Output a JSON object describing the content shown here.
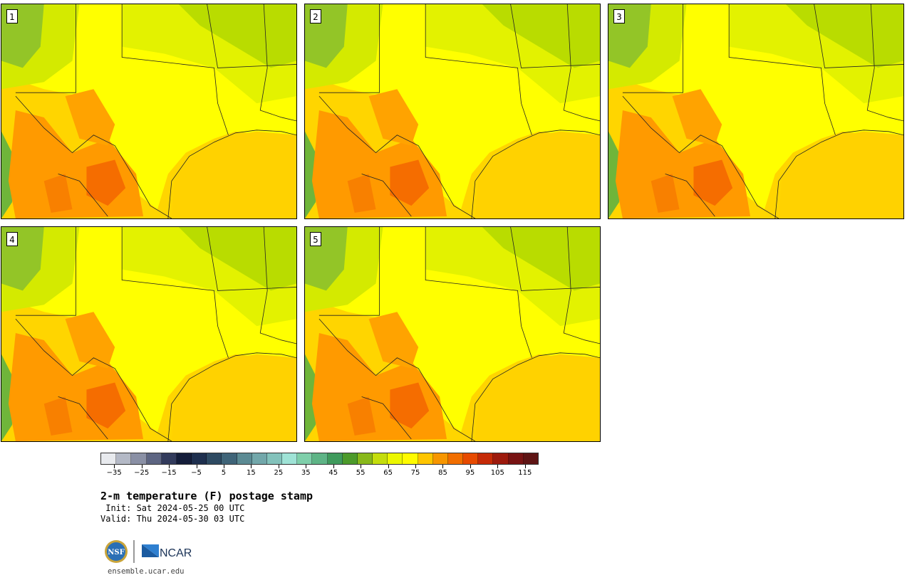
{
  "panels": [
    {
      "label": "1"
    },
    {
      "label": "2"
    },
    {
      "label": "3"
    },
    {
      "label": "4"
    },
    {
      "label": "5"
    }
  ],
  "colorbar": {
    "colors": [
      "#e8eaee",
      "#b4b9c6",
      "#8a90a5",
      "#5d6582",
      "#323b5c",
      "#141d3a",
      "#1e2f4e",
      "#2e4a62",
      "#3f6478",
      "#5b8a93",
      "#72a7aa",
      "#83c2bb",
      "#9fe3d6",
      "#7fcfaa",
      "#5eb486",
      "#3f9a5c",
      "#4c9a2a",
      "#88b81a",
      "#c4dd0c",
      "#ecf700",
      "#fffb00",
      "#ffc500",
      "#f79600",
      "#f16e00",
      "#e74a00",
      "#c52a07",
      "#9d1a0d",
      "#781313",
      "#5e1414"
    ],
    "tick_labels": [
      "−35",
      "−25",
      "−15",
      "−5",
      "5",
      "15",
      "25",
      "35",
      "45",
      "55",
      "65",
      "75",
      "85",
      "95",
      "105",
      "115"
    ]
  },
  "title": "2-m temperature (F) postage stamp",
  "init_line": " Init: Sat 2024-05-25 00 UTC",
  "valid_line": "Valid: Thu 2024-05-30 03 UTC",
  "url": "ensemble.ucar.edu",
  "logos": {
    "nsf": "NSF",
    "ncar": "NCAR"
  }
}
